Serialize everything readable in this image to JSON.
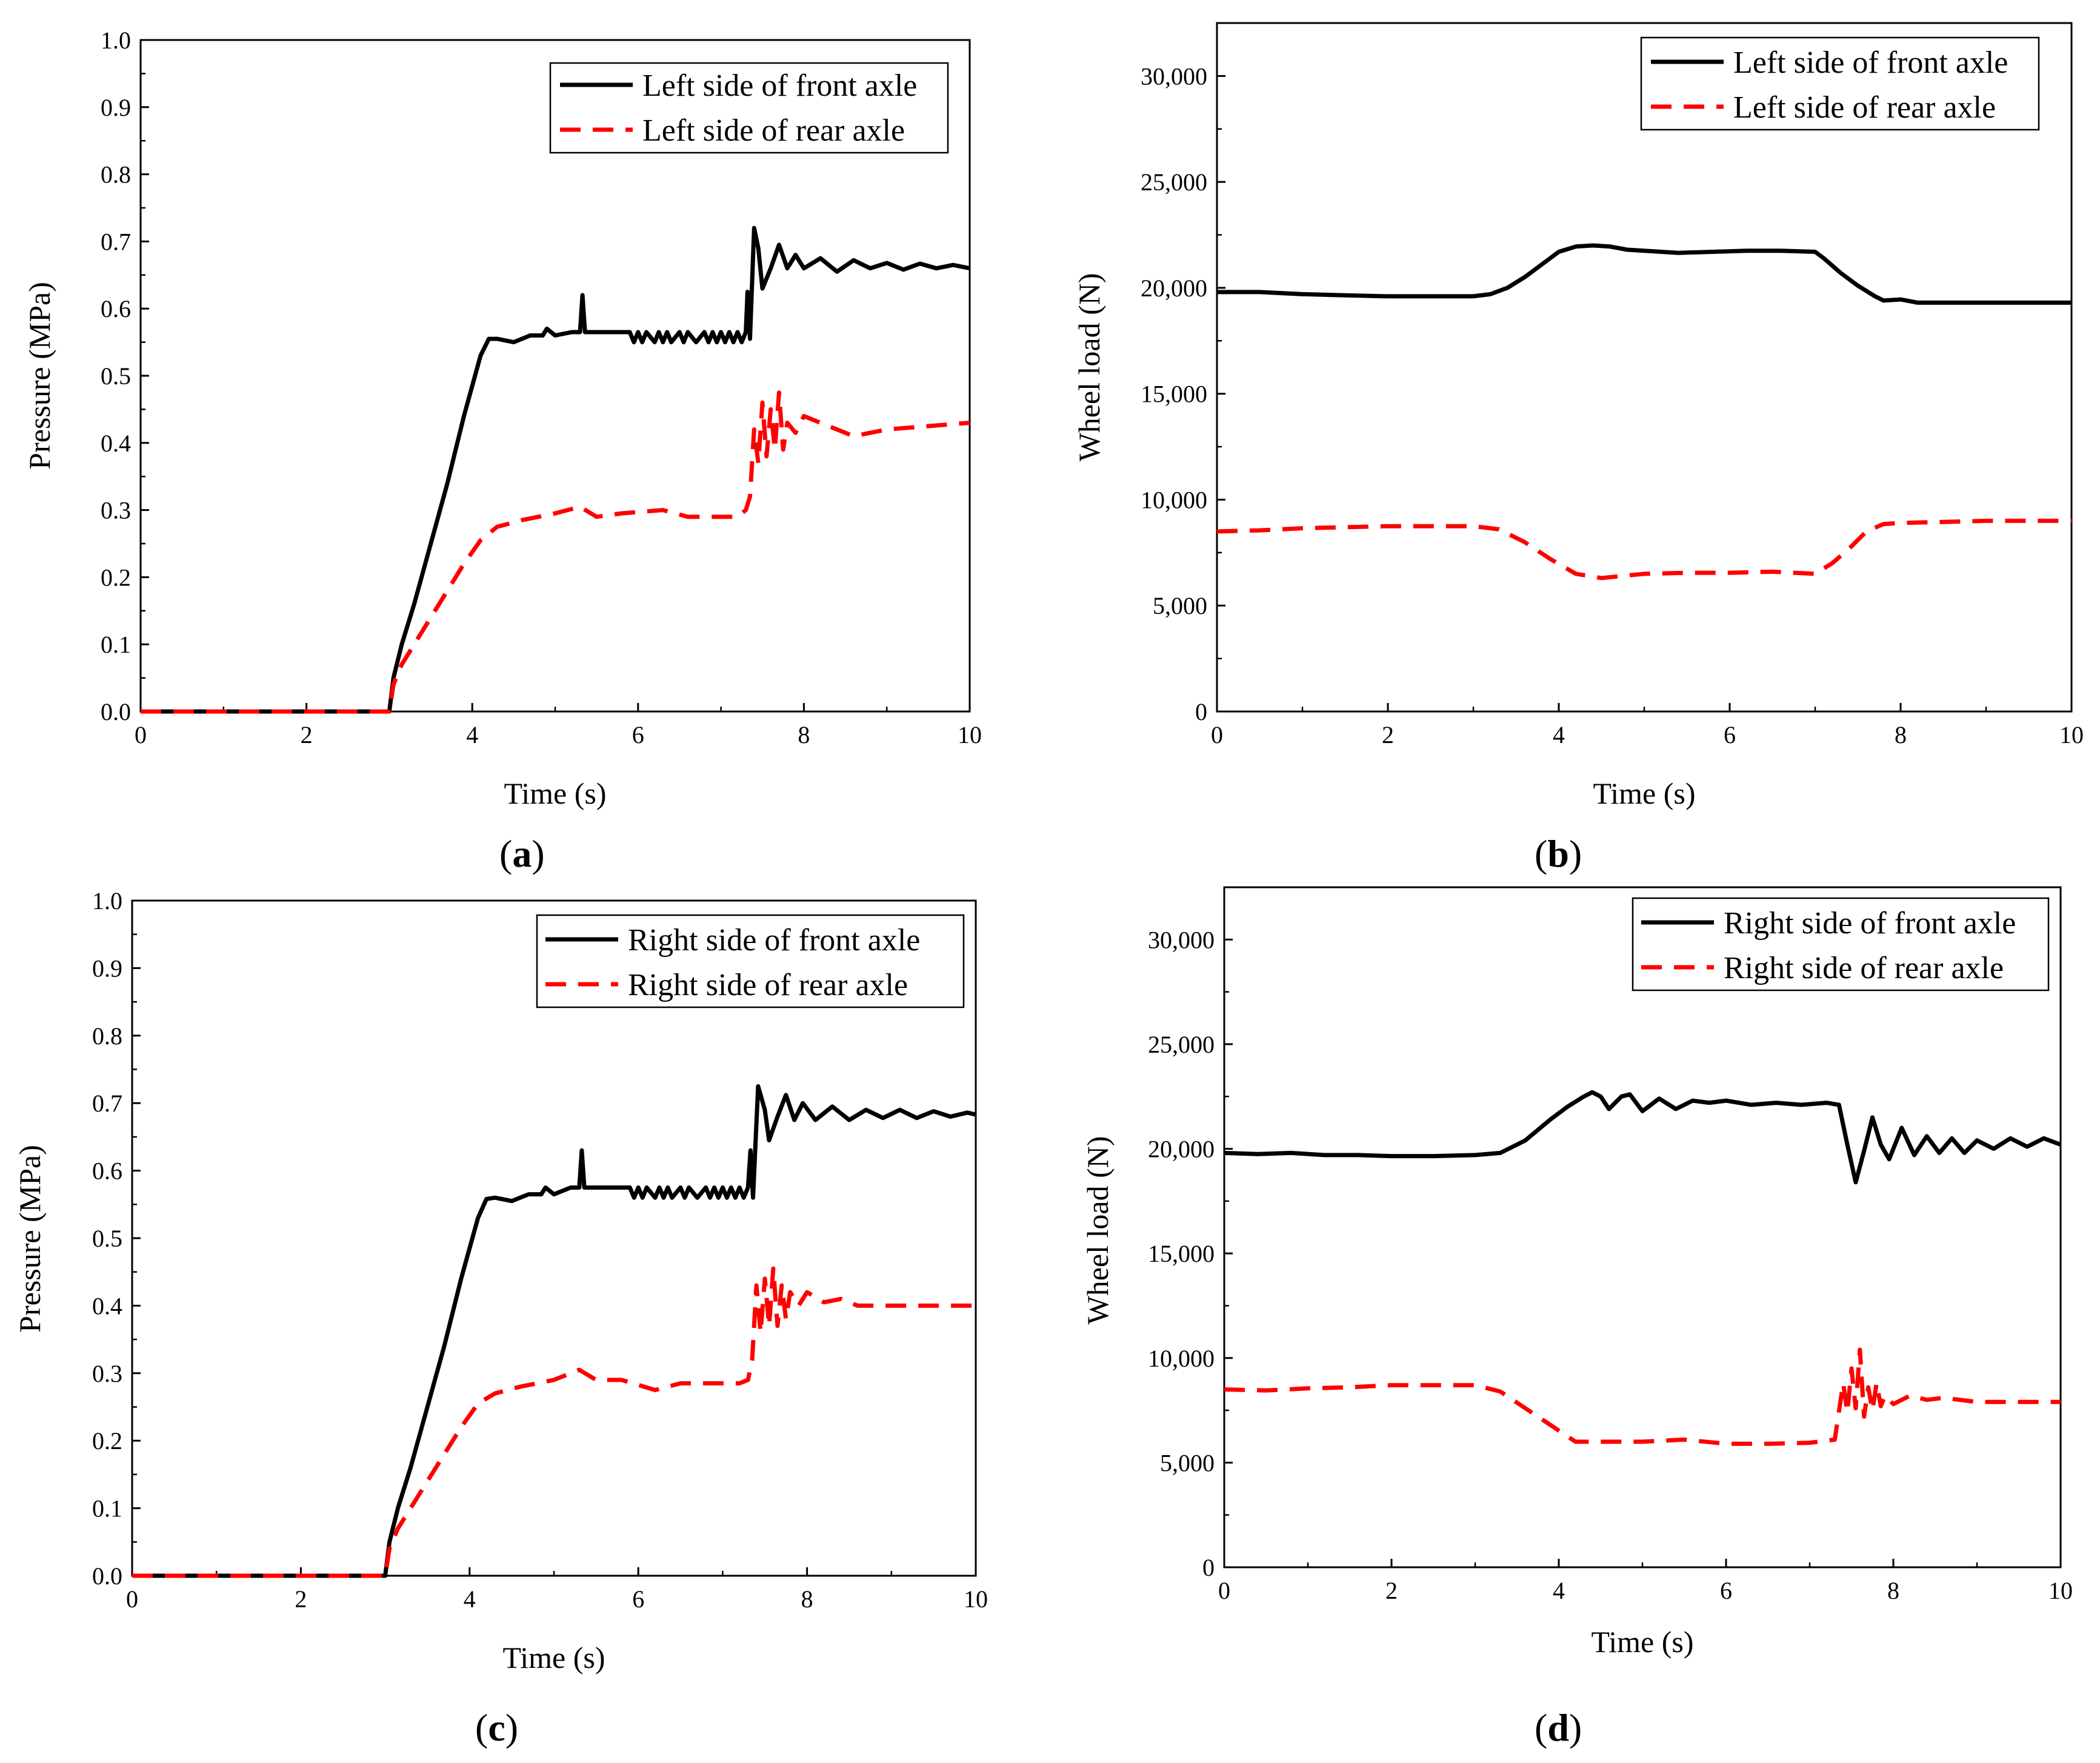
{
  "chart_data": [
    {
      "id": "a",
      "type": "line",
      "panel_label": "a",
      "xlabel": "Time (s)",
      "ylabel": "Pressure (MPa)",
      "xlim": [
        0,
        10
      ],
      "ylim": [
        0,
        1.0
      ],
      "xticks": [
        0,
        2,
        4,
        6,
        8,
        10
      ],
      "xtick_labels": [
        "0",
        "2",
        "4",
        "6",
        "8",
        "10"
      ],
      "yticks": [
        0,
        0.1,
        0.2,
        0.3,
        0.4,
        0.5,
        0.6,
        0.7,
        0.8,
        0.9,
        1.0
      ],
      "ytick_labels": [
        "0.0",
        "0.1",
        "0.2",
        "0.3",
        "0.4",
        "0.5",
        "0.6",
        "0.7",
        "0.8",
        "0.9",
        "1.0"
      ],
      "legend_position": "top-right",
      "series": [
        {
          "name": "Left side of front axle",
          "color": "#000000",
          "style": "solid",
          "x": [
            0,
            3.0,
            3.05,
            3.15,
            3.3,
            3.5,
            3.7,
            3.9,
            4.1,
            4.2,
            4.3,
            4.5,
            4.7,
            4.85,
            4.9,
            5.0,
            5.2,
            5.3,
            5.33,
            5.36,
            5.4,
            5.6,
            5.8,
            5.9,
            5.95,
            6.0,
            6.05,
            6.1,
            6.2,
            6.25,
            6.3,
            6.35,
            6.4,
            6.5,
            6.55,
            6.6,
            6.7,
            6.8,
            6.85,
            6.9,
            6.95,
            7.0,
            7.05,
            7.1,
            7.15,
            7.2,
            7.25,
            7.3,
            7.32,
            7.35,
            7.4,
            7.45,
            7.5,
            7.6,
            7.7,
            7.8,
            7.9,
            8.0,
            8.2,
            8.4,
            8.6,
            8.8,
            9.0,
            9.2,
            9.4,
            9.6,
            9.8,
            10.0
          ],
          "y": [
            0,
            0,
            0.05,
            0.1,
            0.16,
            0.25,
            0.34,
            0.44,
            0.53,
            0.555,
            0.555,
            0.55,
            0.56,
            0.56,
            0.57,
            0.56,
            0.565,
            0.565,
            0.62,
            0.565,
            0.565,
            0.565,
            0.565,
            0.565,
            0.55,
            0.565,
            0.55,
            0.565,
            0.55,
            0.565,
            0.55,
            0.565,
            0.55,
            0.565,
            0.55,
            0.565,
            0.55,
            0.565,
            0.55,
            0.565,
            0.55,
            0.565,
            0.55,
            0.565,
            0.55,
            0.565,
            0.55,
            0.565,
            0.625,
            0.555,
            0.72,
            0.69,
            0.63,
            0.66,
            0.695,
            0.66,
            0.68,
            0.66,
            0.675,
            0.655,
            0.672,
            0.66,
            0.668,
            0.658,
            0.667,
            0.66,
            0.665,
            0.66
          ]
        },
        {
          "name": "Left side of rear axle",
          "color": "#ff0000",
          "style": "dashed",
          "x": [
            0,
            3.0,
            3.05,
            3.15,
            3.3,
            3.5,
            3.7,
            3.9,
            4.1,
            4.3,
            4.6,
            5.0,
            5.3,
            5.5,
            5.8,
            6.3,
            6.6,
            6.9,
            7.2,
            7.3,
            7.35,
            7.4,
            7.45,
            7.5,
            7.55,
            7.6,
            7.65,
            7.7,
            7.75,
            7.8,
            7.9,
            8.0,
            8.2,
            8.4,
            8.6,
            9.0,
            9.5,
            10.0
          ],
          "y": [
            0,
            0,
            0.04,
            0.07,
            0.1,
            0.14,
            0.18,
            0.22,
            0.255,
            0.275,
            0.285,
            0.295,
            0.305,
            0.29,
            0.295,
            0.3,
            0.29,
            0.29,
            0.29,
            0.3,
            0.32,
            0.42,
            0.37,
            0.46,
            0.38,
            0.45,
            0.39,
            0.475,
            0.39,
            0.43,
            0.415,
            0.44,
            0.43,
            0.42,
            0.41,
            0.42,
            0.425,
            0.43
          ]
        }
      ]
    },
    {
      "id": "b",
      "type": "line",
      "panel_label": "b",
      "xlabel": "Time (s)",
      "ylabel": "Wheel load (N)",
      "xlim": [
        0,
        10
      ],
      "ylim": [
        0,
        32500
      ],
      "xticks": [
        0,
        2,
        4,
        6,
        8,
        10
      ],
      "xtick_labels": [
        "0",
        "2",
        "4",
        "6",
        "8",
        "10"
      ],
      "yticks": [
        0,
        5000,
        10000,
        15000,
        20000,
        25000,
        30000
      ],
      "ytick_labels": [
        "0",
        "5,000",
        "10,000",
        "15,000",
        "20,000",
        "25,000",
        "30,000"
      ],
      "legend_position": "top-right",
      "series": [
        {
          "name": "Left side of front axle",
          "color": "#000000",
          "style": "solid",
          "x": [
            0,
            0.5,
            1.0,
            1.5,
            2.0,
            2.5,
            3.0,
            3.2,
            3.4,
            3.6,
            3.8,
            4.0,
            4.2,
            4.4,
            4.6,
            4.8,
            5.0,
            5.4,
            5.8,
            6.2,
            6.6,
            7.0,
            7.1,
            7.3,
            7.5,
            7.7,
            7.8,
            8.0,
            8.2,
            8.5,
            9.0,
            9.5,
            10.0
          ],
          "y": [
            19800,
            19800,
            19700,
            19650,
            19600,
            19600,
            19600,
            19700,
            20000,
            20500,
            21100,
            21700,
            21950,
            22000,
            21950,
            21800,
            21750,
            21650,
            21700,
            21750,
            21750,
            21700,
            21400,
            20700,
            20100,
            19600,
            19400,
            19450,
            19300,
            19300,
            19300,
            19300,
            19300
          ]
        },
        {
          "name": "Left side of rear axle",
          "color": "#ff0000",
          "style": "dashed",
          "x": [
            0,
            0.5,
            1.0,
            1.5,
            2.0,
            2.5,
            3.0,
            3.3,
            3.6,
            3.9,
            4.2,
            4.5,
            5.0,
            5.5,
            6.0,
            6.5,
            7.0,
            7.2,
            7.4,
            7.6,
            7.8,
            8.0,
            8.5,
            9.0,
            9.5,
            10.0
          ],
          "y": [
            8500,
            8550,
            8650,
            8700,
            8750,
            8750,
            8750,
            8600,
            8000,
            7200,
            6500,
            6300,
            6500,
            6550,
            6550,
            6600,
            6500,
            7000,
            7700,
            8500,
            8850,
            8900,
            8950,
            9000,
            9000,
            9000
          ]
        }
      ]
    },
    {
      "id": "c",
      "type": "line",
      "panel_label": "c",
      "xlabel": "Time (s)",
      "ylabel": "Pressure (MPa)",
      "xlim": [
        0,
        10
      ],
      "ylim": [
        0,
        1.0
      ],
      "xticks": [
        0,
        2,
        4,
        6,
        8,
        10
      ],
      "xtick_labels": [
        "0",
        "2",
        "4",
        "6",
        "8",
        "10"
      ],
      "yticks": [
        0,
        0.1,
        0.2,
        0.3,
        0.4,
        0.5,
        0.6,
        0.7,
        0.8,
        0.9,
        1.0
      ],
      "ytick_labels": [
        "0.0",
        "0.1",
        "0.2",
        "0.3",
        "0.4",
        "0.5",
        "0.6",
        "0.7",
        "0.8",
        "0.9",
        "1.0"
      ],
      "legend_position": "top-right",
      "series": [
        {
          "name": "Right side of front axle",
          "color": "#000000",
          "style": "solid",
          "x": [
            0,
            3.0,
            3.05,
            3.15,
            3.3,
            3.5,
            3.7,
            3.9,
            4.1,
            4.2,
            4.3,
            4.5,
            4.7,
            4.85,
            4.9,
            5.0,
            5.2,
            5.3,
            5.33,
            5.36,
            5.4,
            5.6,
            5.8,
            5.9,
            5.95,
            6.0,
            6.05,
            6.1,
            6.2,
            6.25,
            6.3,
            6.35,
            6.4,
            6.5,
            6.55,
            6.6,
            6.7,
            6.8,
            6.85,
            6.9,
            6.95,
            7.0,
            7.05,
            7.1,
            7.15,
            7.2,
            7.25,
            7.3,
            7.33,
            7.36,
            7.42,
            7.5,
            7.55,
            7.65,
            7.75,
            7.85,
            7.95,
            8.1,
            8.3,
            8.5,
            8.7,
            8.9,
            9.1,
            9.3,
            9.5,
            9.7,
            9.9,
            10.0
          ],
          "y": [
            0,
            0,
            0.05,
            0.1,
            0.16,
            0.25,
            0.34,
            0.44,
            0.53,
            0.558,
            0.56,
            0.555,
            0.565,
            0.565,
            0.575,
            0.565,
            0.575,
            0.575,
            0.63,
            0.575,
            0.575,
            0.575,
            0.575,
            0.575,
            0.56,
            0.575,
            0.56,
            0.575,
            0.56,
            0.575,
            0.56,
            0.575,
            0.56,
            0.575,
            0.56,
            0.575,
            0.56,
            0.575,
            0.56,
            0.575,
            0.56,
            0.575,
            0.56,
            0.575,
            0.56,
            0.575,
            0.56,
            0.575,
            0.63,
            0.56,
            0.725,
            0.69,
            0.645,
            0.68,
            0.712,
            0.675,
            0.7,
            0.675,
            0.695,
            0.675,
            0.69,
            0.678,
            0.69,
            0.678,
            0.688,
            0.68,
            0.686,
            0.683
          ]
        },
        {
          "name": "Right side of rear axle",
          "color": "#ff0000",
          "style": "dashed",
          "x": [
            0,
            3.0,
            3.05,
            3.15,
            3.3,
            3.5,
            3.7,
            3.9,
            4.1,
            4.3,
            4.6,
            5.0,
            5.3,
            5.5,
            5.8,
            6.2,
            6.5,
            6.9,
            7.2,
            7.3,
            7.35,
            7.4,
            7.45,
            7.5,
            7.55,
            7.6,
            7.65,
            7.7,
            7.75,
            7.8,
            7.9,
            8.0,
            8.2,
            8.4,
            8.6,
            9.0,
            9.5,
            10.0
          ],
          "y": [
            0,
            0,
            0.04,
            0.07,
            0.1,
            0.14,
            0.18,
            0.22,
            0.255,
            0.27,
            0.28,
            0.29,
            0.305,
            0.29,
            0.29,
            0.275,
            0.285,
            0.285,
            0.285,
            0.29,
            0.32,
            0.43,
            0.36,
            0.44,
            0.37,
            0.455,
            0.37,
            0.43,
            0.38,
            0.42,
            0.4,
            0.42,
            0.405,
            0.41,
            0.4,
            0.4,
            0.4,
            0.4
          ]
        }
      ]
    },
    {
      "id": "d",
      "type": "line",
      "panel_label": "d",
      "xlabel": "Time (s)",
      "ylabel": "Wheel load (N)",
      "xlim": [
        0,
        10
      ],
      "ylim": [
        0,
        32500
      ],
      "xticks": [
        0,
        2,
        4,
        6,
        8,
        10
      ],
      "xtick_labels": [
        "0",
        "2",
        "4",
        "6",
        "8",
        "10"
      ],
      "yticks": [
        0,
        5000,
        10000,
        15000,
        20000,
        25000,
        30000
      ],
      "ytick_labels": [
        "0",
        "5,000",
        "10,000",
        "15,000",
        "20,000",
        "25,000",
        "30,000"
      ],
      "legend_position": "top-right",
      "series": [
        {
          "name": "Right side of front axle",
          "color": "#000000",
          "style": "solid",
          "x": [
            0,
            0.4,
            0.8,
            1.2,
            1.6,
            2.0,
            2.5,
            3.0,
            3.3,
            3.6,
            3.9,
            4.1,
            4.3,
            4.4,
            4.5,
            4.6,
            4.75,
            4.85,
            5.0,
            5.2,
            5.4,
            5.6,
            5.8,
            6.0,
            6.3,
            6.6,
            6.9,
            7.2,
            7.35,
            7.45,
            7.55,
            7.65,
            7.75,
            7.85,
            7.95,
            8.1,
            8.25,
            8.4,
            8.55,
            8.7,
            8.85,
            9.0,
            9.2,
            9.4,
            9.6,
            9.8,
            10.0
          ],
          "y": [
            19800,
            19750,
            19800,
            19700,
            19700,
            19650,
            19650,
            19700,
            19800,
            20400,
            21400,
            22000,
            22500,
            22700,
            22500,
            21900,
            22500,
            22600,
            21800,
            22400,
            21900,
            22300,
            22200,
            22300,
            22100,
            22200,
            22100,
            22200,
            22100,
            20200,
            18400,
            19900,
            21500,
            20200,
            19500,
            21000,
            19700,
            20600,
            19800,
            20500,
            19800,
            20400,
            20000,
            20500,
            20100,
            20500,
            20200
          ]
        },
        {
          "name": "Right side of rear axle",
          "color": "#ff0000",
          "style": "dashed",
          "x": [
            0,
            0.5,
            1.0,
            1.5,
            2.0,
            2.5,
            3.0,
            3.3,
            3.6,
            3.9,
            4.2,
            4.5,
            5.0,
            5.5,
            6.0,
            6.5,
            7.0,
            7.3,
            7.4,
            7.45,
            7.5,
            7.55,
            7.6,
            7.65,
            7.7,
            7.75,
            7.8,
            7.85,
            7.9,
            8.0,
            8.2,
            8.4,
            8.6,
            9.0,
            9.5,
            10.0
          ],
          "y": [
            8500,
            8450,
            8550,
            8600,
            8700,
            8700,
            8700,
            8400,
            7600,
            6800,
            6000,
            6000,
            6000,
            6100,
            5900,
            5900,
            5950,
            6100,
            8800,
            7400,
            9500,
            7600,
            10400,
            7200,
            8600,
            7500,
            8800,
            7700,
            8200,
            7800,
            8200,
            8000,
            8100,
            7900,
            7900,
            7900
          ]
        }
      ]
    }
  ]
}
